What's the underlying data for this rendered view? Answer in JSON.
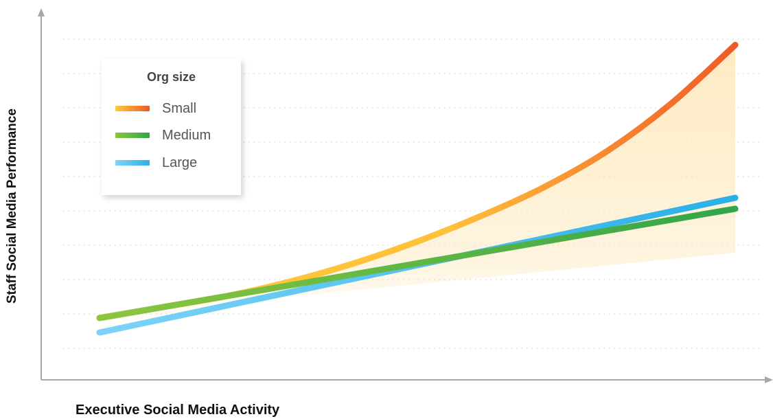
{
  "chart_data": {
    "type": "line",
    "xlabel": "Executive Social Media Activity",
    "ylabel": "Staff Social Media Performance",
    "xlim": [
      0,
      1
    ],
    "ylim": [
      0,
      1
    ],
    "grid": true,
    "legend": {
      "title": "Org size",
      "placement": "top-left"
    },
    "series": [
      {
        "name": "Small",
        "color_start": "#ffc93c",
        "color_end": "#f05a28",
        "x": [
          0.0,
          0.1,
          0.2,
          0.3,
          0.4,
          0.5,
          0.6,
          0.7,
          0.8,
          0.9,
          1.0
        ],
        "y": [
          0.17,
          0.2,
          0.23,
          0.27,
          0.32,
          0.38,
          0.45,
          0.53,
          0.63,
          0.76,
          0.92
        ]
      },
      {
        "name": "Medium",
        "color_start": "#8cc63f",
        "color_end": "#33a54a",
        "x": [
          0.0,
          1.0
        ],
        "y": [
          0.17,
          0.47
        ]
      },
      {
        "name": "Large",
        "color_start": "#7dd3f7",
        "color_end": "#2ab0e8",
        "x": [
          0.0,
          1.0
        ],
        "y": [
          0.13,
          0.5
        ]
      }
    ]
  }
}
